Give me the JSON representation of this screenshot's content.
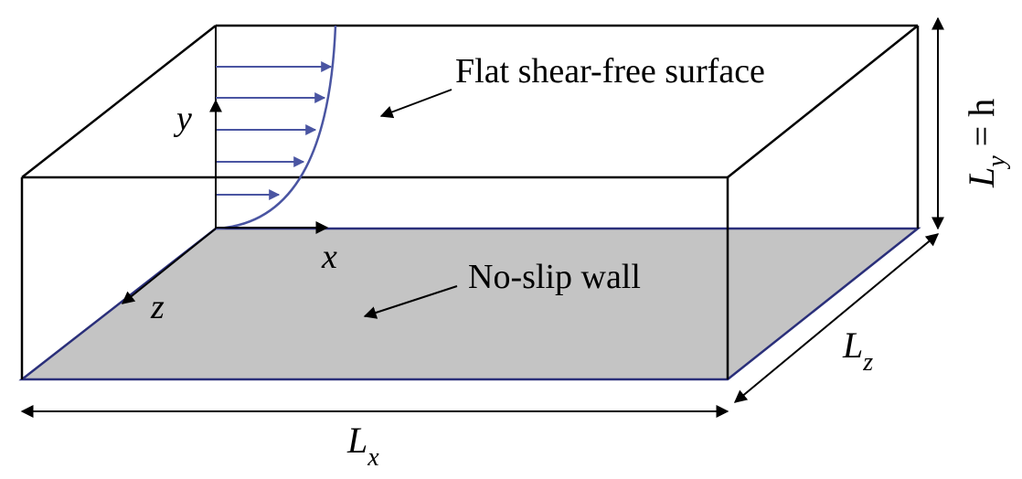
{
  "colors": {
    "outline": "#000000",
    "wall_fill": "#c4c4c4",
    "profile": "#4a55a2"
  },
  "labels": {
    "surface": "Flat shear-free surface",
    "wall": "No-slip wall",
    "axis_x": "x",
    "axis_y": "y",
    "axis_z": "z",
    "lx_main": "L",
    "lx_sub": "x",
    "lz_main": "L",
    "lz_sub": "z",
    "ly_main": "L",
    "ly_sub": "y",
    "ly_rest": " = h"
  }
}
